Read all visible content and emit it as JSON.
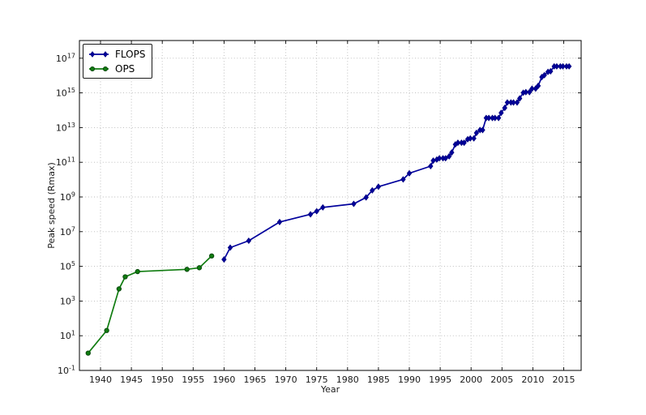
{
  "figure": {
    "background": "#ffffff",
    "plot_border_color": "#000000",
    "grid_color": "#b8b8b8",
    "text_color": "#1a1a1a"
  },
  "chart_data": {
    "type": "line",
    "title": "",
    "xlabel": "Year",
    "ylabel": "Peak speed (Rmax)",
    "x_scale": "linear",
    "y_scale": "log",
    "grid": true,
    "legend_position": "upper-left",
    "x_range": [
      1936.6,
      2017.8
    ],
    "y_log_range": [
      -1,
      18
    ],
    "x_ticks": [
      1940,
      1945,
      1950,
      1955,
      1960,
      1965,
      1970,
      1975,
      1980,
      1985,
      1990,
      1995,
      2000,
      2005,
      2010,
      2015
    ],
    "y_tick_base": "10",
    "y_tick_exponents": [
      -1,
      1,
      3,
      5,
      7,
      9,
      11,
      13,
      15,
      17
    ],
    "series": [
      {
        "name": "FLOPS",
        "color": "#00009c",
        "edge_color": "#000080",
        "marker": "diamond",
        "x": [
          1960,
          1961,
          1964,
          1969,
          1974,
          1975,
          1976,
          1981,
          1983,
          1984,
          1985,
          1989,
          1990,
          1993.45,
          1993.87,
          1994.45,
          1994.87,
          1995.45,
          1995.87,
          1996.45,
          1996.87,
          1997.45,
          1997.87,
          1998.45,
          1998.87,
          1999.45,
          1999.87,
          2000.45,
          2000.87,
          2001.45,
          2001.87,
          2002.45,
          2002.87,
          2003.45,
          2003.87,
          2004.45,
          2004.87,
          2005.45,
          2005.87,
          2006.45,
          2006.87,
          2007.45,
          2007.87,
          2008.45,
          2008.87,
          2009.45,
          2009.87,
          2010.45,
          2010.87,
          2011.45,
          2011.87,
          2012.45,
          2012.87,
          2013.45,
          2013.87,
          2014.45,
          2014.87,
          2015.45,
          2015.87
        ],
        "y": [
          250000.0,
          1200000.0,
          3000000.0,
          36000000.0,
          100000000.0,
          150000000.0,
          250000000.0,
          400000000.0,
          941000000.0,
          2400000000.0,
          3900000000.0,
          10300000000.0,
          23200000000.0,
          59700000000.0,
          124500000000.0,
          143400000000.0,
          170400000000.0,
          170400000000.0,
          170400000000.0,
          220400000000.0,
          368200000000.0,
          1068000000000.0,
          1338000000000.0,
          1338000000000.0,
          1338000000000.0,
          2121300000000.0,
          2379600000000.0,
          2379600000000.0,
          4938000000000.0,
          7226000000000.0,
          7226000000000.0,
          35860000000000.0,
          35860000000000.0,
          35860000000000.0,
          35860000000000.0,
          35860000000000.0,
          70720000000000.0,
          136800000000000.0,
          280600000000000.0,
          280600000000000.0,
          280600000000000.0,
          280600000000000.0,
          478200000000000.0,
          1026000000000000.0,
          1105000000000000.0,
          1105000000000000.0,
          1759000000000000.0,
          1759000000000000.0,
          2566000000000000.0,
          8162000000000000.0,
          1.051e+16,
          1.6325e+16,
          1.759e+16,
          3.386e+16,
          3.386e+16,
          3.386e+16,
          3.386e+16,
          3.386e+16,
          3.386e+16
        ]
      },
      {
        "name": "OPS",
        "color": "#107c10",
        "edge_color": "#06430a",
        "marker": "circle",
        "x": [
          1938,
          1941,
          1943,
          1944,
          1946,
          1954,
          1956,
          1958
        ],
        "y": [
          1,
          20,
          5000.0,
          25000.0,
          50000.0,
          67000.0,
          83000.0,
          400000.0
        ]
      }
    ]
  },
  "legend": {
    "items": [
      {
        "label": "FLOPS"
      },
      {
        "label": "OPS"
      }
    ]
  }
}
